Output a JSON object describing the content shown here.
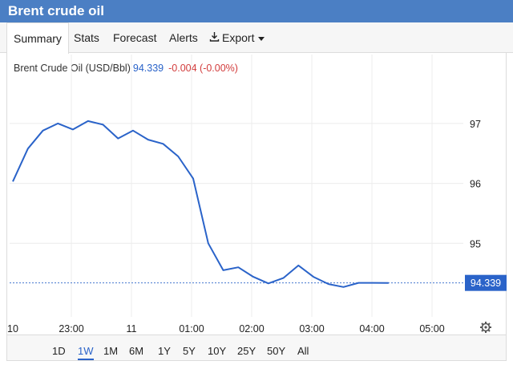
{
  "header": {
    "title": "Brent crude oil"
  },
  "tabs": [
    {
      "label": "Summary",
      "active": true
    },
    {
      "label": "Stats",
      "active": false
    },
    {
      "label": "Forecast",
      "active": false
    },
    {
      "label": "Alerts",
      "active": false
    },
    {
      "label": "Export",
      "active": false,
      "icon": "download-icon",
      "dropdown": true
    }
  ],
  "quote": {
    "name": "Brent Crude Oil (USD/Bbl)",
    "price": "94.339",
    "change": "-0.004 (-0.00%)",
    "price_color": "#2a63c9",
    "change_color": "#d23c3c"
  },
  "chart_data": {
    "type": "line",
    "title": "",
    "xlabel": "",
    "ylabel": "",
    "x_tick_labels": [
      "10",
      "23:00",
      "11",
      "01:00",
      "02:00",
      "03:00",
      "04:00",
      "05:00"
    ],
    "y_ticks": [
      95,
      96,
      97
    ],
    "y_tick_labels": [
      "95",
      "96",
      "97"
    ],
    "ylim": [
      94.0,
      97.4
    ],
    "last_value_label": "94.339",
    "last_value": 94.339,
    "grid": true,
    "series": [
      {
        "line_color": "#2a63c9",
        "points": [
          [
            "10 22:00",
            96.03
          ],
          [
            "10 22:15",
            96.58
          ],
          [
            "10 22:30",
            96.88
          ],
          [
            "10 22:45",
            97.0
          ],
          [
            "10 23:00",
            96.9
          ],
          [
            "10 23:15",
            97.04
          ],
          [
            "10 23:30",
            96.98
          ],
          [
            "10 23:45",
            96.75
          ],
          [
            "11 00:00",
            96.88
          ],
          [
            "11 00:15",
            96.73
          ],
          [
            "11 00:30",
            96.66
          ],
          [
            "11 00:45",
            96.45
          ],
          [
            "11 01:00",
            96.08
          ],
          [
            "11 01:15",
            95.0
          ],
          [
            "11 01:30",
            94.55
          ],
          [
            "11 01:45",
            94.6
          ],
          [
            "11 02:00",
            94.44
          ],
          [
            "11 02:15",
            94.33
          ],
          [
            "11 02:30",
            94.42
          ],
          [
            "11 02:45",
            94.63
          ],
          [
            "11 03:00",
            94.44
          ],
          [
            "11 03:15",
            94.32
          ],
          [
            "11 03:30",
            94.27
          ],
          [
            "11 03:45",
            94.34
          ],
          [
            "11 04:00",
            94.34
          ],
          [
            "11 04:15",
            94.339
          ]
        ]
      }
    ]
  },
  "ranges": [
    {
      "label": "1D",
      "active": false
    },
    {
      "label": "1W",
      "active": true
    },
    {
      "label": "1M",
      "active": false
    },
    {
      "label": "6M",
      "active": false
    },
    {
      "label": "1Y",
      "active": false
    },
    {
      "label": "5Y",
      "active": false
    },
    {
      "label": "10Y",
      "active": false
    },
    {
      "label": "25Y",
      "active": false
    },
    {
      "label": "50Y",
      "active": false
    },
    {
      "label": "All",
      "active": false
    }
  ],
  "settings_icon": "gear-icon",
  "colors": {
    "header_bg": "#4b7fc4",
    "accent": "#2a63c9"
  }
}
